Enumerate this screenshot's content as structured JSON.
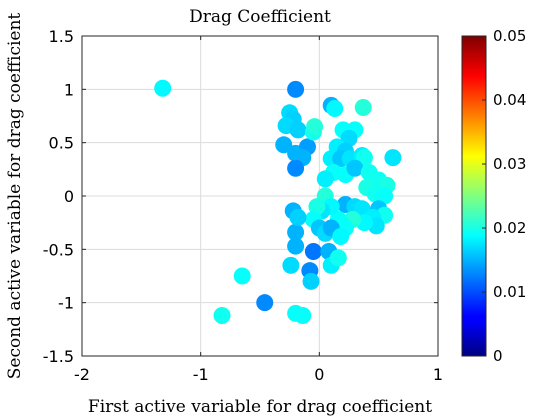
{
  "chart_data": {
    "type": "scatter",
    "title": "Drag Coefficient",
    "xlabel": "First active variable for drag coefficient",
    "ylabel": "Second active variable for drag coefficient",
    "xlim": [
      -2,
      1
    ],
    "ylim": [
      -1.5,
      1.5
    ],
    "xticks": [
      -2,
      -1,
      0,
      1
    ],
    "yticks": [
      -1.5,
      -1,
      -0.5,
      0,
      0.5,
      1,
      1.5
    ],
    "xtick_labels": [
      "-2",
      "-1",
      "0",
      "1"
    ],
    "ytick_labels": [
      "-1.5",
      "-1",
      "-0.5",
      "0",
      "0.5",
      "1",
      "1.5"
    ],
    "grid": true,
    "colorbar": {
      "colormap": "jet",
      "range": [
        0,
        0.05
      ],
      "ticks": [
        0,
        0.01,
        0.02,
        0.03,
        0.04,
        0.05
      ],
      "tick_labels": [
        "0",
        "0.01",
        "0.02",
        "0.03",
        "0.04",
        "0.05"
      ]
    },
    "points": [
      {
        "x": -1.32,
        "y": 1.01,
        "c": 0.0185
      },
      {
        "x": -0.82,
        "y": -1.12,
        "c": 0.0195
      },
      {
        "x": -0.65,
        "y": -0.75,
        "c": 0.019
      },
      {
        "x": -0.46,
        "y": -1.0,
        "c": 0.013
      },
      {
        "x": -0.2,
        "y": 1.0,
        "c": 0.013
      },
      {
        "x": -0.25,
        "y": 0.78,
        "c": 0.017
      },
      {
        "x": -0.22,
        "y": 0.72,
        "c": 0.0165
      },
      {
        "x": -0.28,
        "y": 0.66,
        "c": 0.017
      },
      {
        "x": -0.18,
        "y": 0.62,
        "c": 0.0165
      },
      {
        "x": -0.3,
        "y": 0.48,
        "c": 0.015
      },
      {
        "x": -0.2,
        "y": 0.4,
        "c": 0.015
      },
      {
        "x": -0.1,
        "y": 0.46,
        "c": 0.014
      },
      {
        "x": -0.14,
        "y": 0.36,
        "c": 0.015
      },
      {
        "x": -0.2,
        "y": 0.26,
        "c": 0.013
      },
      {
        "x": -0.05,
        "y": 0.6,
        "c": 0.0195
      },
      {
        "x": -0.04,
        "y": 0.65,
        "c": 0.0205
      },
      {
        "x": 0.1,
        "y": 0.85,
        "c": 0.015
      },
      {
        "x": 0.13,
        "y": 0.82,
        "c": 0.0185
      },
      {
        "x": 0.37,
        "y": 0.83,
        "c": 0.0205
      },
      {
        "x": 0.2,
        "y": 0.62,
        "c": 0.019
      },
      {
        "x": 0.3,
        "y": 0.62,
        "c": 0.019
      },
      {
        "x": 0.25,
        "y": 0.54,
        "c": 0.017
      },
      {
        "x": 0.15,
        "y": 0.46,
        "c": 0.018
      },
      {
        "x": 0.22,
        "y": 0.42,
        "c": 0.0165
      },
      {
        "x": 0.1,
        "y": 0.35,
        "c": 0.018
      },
      {
        "x": 0.18,
        "y": 0.35,
        "c": 0.016
      },
      {
        "x": 0.26,
        "y": 0.35,
        "c": 0.0175
      },
      {
        "x": 0.36,
        "y": 0.38,
        "c": 0.018
      },
      {
        "x": 0.38,
        "y": 0.36,
        "c": 0.0195
      },
      {
        "x": 0.12,
        "y": 0.22,
        "c": 0.019
      },
      {
        "x": 0.22,
        "y": 0.2,
        "c": 0.019
      },
      {
        "x": 0.3,
        "y": 0.26,
        "c": 0.016
      },
      {
        "x": 0.42,
        "y": 0.22,
        "c": 0.0195
      },
      {
        "x": 0.5,
        "y": 0.15,
        "c": 0.0195
      },
      {
        "x": 0.57,
        "y": 0.1,
        "c": 0.02
      },
      {
        "x": 0.62,
        "y": 0.36,
        "c": 0.0175
      },
      {
        "x": 0.4,
        "y": 0.08,
        "c": 0.02
      },
      {
        "x": 0.47,
        "y": 0.02,
        "c": 0.0195
      },
      {
        "x": 0.55,
        "y": 0.0,
        "c": 0.019
      },
      {
        "x": 0.05,
        "y": 0.16,
        "c": 0.018
      },
      {
        "x": 0.05,
        "y": 0.0,
        "c": 0.0205
      },
      {
        "x": 0.22,
        "y": -0.08,
        "c": 0.015
      },
      {
        "x": 0.3,
        "y": -0.1,
        "c": 0.017
      },
      {
        "x": 0.36,
        "y": -0.12,
        "c": 0.0175
      },
      {
        "x": 0.5,
        "y": -0.12,
        "c": 0.016
      },
      {
        "x": 0.55,
        "y": -0.18,
        "c": 0.0195
      },
      {
        "x": 0.45,
        "y": -0.2,
        "c": 0.018
      },
      {
        "x": 0.48,
        "y": -0.28,
        "c": 0.0175
      },
      {
        "x": 0.38,
        "y": -0.25,
        "c": 0.0185
      },
      {
        "x": 0.28,
        "y": -0.22,
        "c": 0.0205
      },
      {
        "x": 0.22,
        "y": -0.3,
        "c": 0.019
      },
      {
        "x": 0.16,
        "y": -0.22,
        "c": 0.019
      },
      {
        "x": 0.1,
        "y": -0.1,
        "c": 0.0185
      },
      {
        "x": 0.02,
        "y": -0.14,
        "c": 0.0175
      },
      {
        "x": -0.02,
        "y": -0.1,
        "c": 0.02
      },
      {
        "x": -0.05,
        "y": -0.22,
        "c": 0.019
      },
      {
        "x": 0.0,
        "y": -0.3,
        "c": 0.016
      },
      {
        "x": 0.05,
        "y": -0.35,
        "c": 0.017
      },
      {
        "x": 0.1,
        "y": -0.3,
        "c": 0.015
      },
      {
        "x": 0.18,
        "y": -0.38,
        "c": 0.0185
      },
      {
        "x": -0.22,
        "y": -0.14,
        "c": 0.015
      },
      {
        "x": -0.2,
        "y": -0.34,
        "c": 0.015
      },
      {
        "x": -0.18,
        "y": -0.2,
        "c": 0.0165
      },
      {
        "x": -0.2,
        "y": -0.47,
        "c": 0.015
      },
      {
        "x": -0.24,
        "y": -0.65,
        "c": 0.017
      },
      {
        "x": -0.05,
        "y": -0.52,
        "c": 0.012
      },
      {
        "x": 0.08,
        "y": -0.52,
        "c": 0.015
      },
      {
        "x": 0.1,
        "y": -0.65,
        "c": 0.018
      },
      {
        "x": 0.16,
        "y": -0.58,
        "c": 0.0195
      },
      {
        "x": -0.08,
        "y": -0.7,
        "c": 0.013
      },
      {
        "x": -0.07,
        "y": -0.8,
        "c": 0.0165
      },
      {
        "x": -0.2,
        "y": -1.1,
        "c": 0.019
      },
      {
        "x": -0.14,
        "y": -1.12,
        "c": 0.019
      }
    ]
  }
}
